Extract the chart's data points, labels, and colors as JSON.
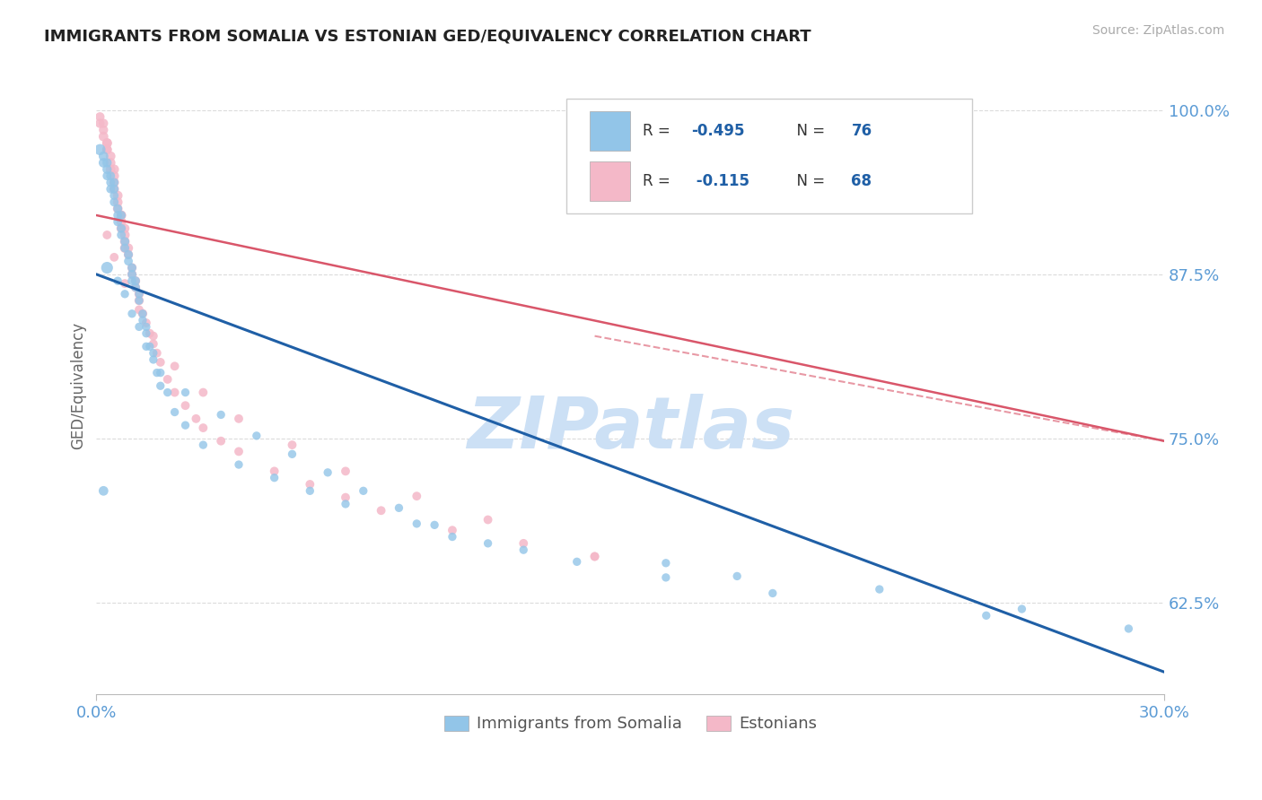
{
  "title": "IMMIGRANTS FROM SOMALIA VS ESTONIAN GED/EQUIVALENCY CORRELATION CHART",
  "source_text": "Source: ZipAtlas.com",
  "ylabel": "GED/Equivalency",
  "xlim": [
    0.0,
    0.3
  ],
  "ylim": [
    0.555,
    1.025
  ],
  "yticks": [
    0.625,
    0.75,
    0.875,
    1.0
  ],
  "ytick_labels": [
    "62.5%",
    "75.0%",
    "87.5%",
    "100.0%"
  ],
  "xticks": [
    0.0,
    0.3
  ],
  "xtick_labels": [
    "0.0%",
    "30.0%"
  ],
  "title_color": "#222222",
  "title_fontsize": 13,
  "tick_label_color": "#5b9bd5",
  "watermark_text": "ZIPatlas",
  "watermark_color": "#cce0f5",
  "blue_color": "#92c5e8",
  "pink_color": "#f4b8c8",
  "blue_line_color": "#1f5fa6",
  "pink_line_color": "#d9566a",
  "legend_label1": "Immigrants from Somalia",
  "legend_label2": "Estonians",
  "blue_line_x": [
    0.0,
    0.3
  ],
  "blue_line_y": [
    0.875,
    0.572
  ],
  "pink_line_x": [
    0.0,
    0.3
  ],
  "pink_line_y": [
    0.92,
    0.748
  ],
  "grid_color": "#cccccc",
  "background_color": "#ffffff",
  "blue_scatter_x": [
    0.001,
    0.002,
    0.002,
    0.003,
    0.003,
    0.003,
    0.004,
    0.004,
    0.004,
    0.005,
    0.005,
    0.005,
    0.005,
    0.006,
    0.006,
    0.006,
    0.007,
    0.007,
    0.007,
    0.008,
    0.008,
    0.009,
    0.009,
    0.01,
    0.01,
    0.01,
    0.011,
    0.011,
    0.012,
    0.012,
    0.013,
    0.013,
    0.014,
    0.014,
    0.015,
    0.016,
    0.016,
    0.017,
    0.018,
    0.02,
    0.022,
    0.025,
    0.03,
    0.04,
    0.05,
    0.06,
    0.07,
    0.09,
    0.1,
    0.12,
    0.16,
    0.18,
    0.22,
    0.26,
    0.006,
    0.008,
    0.01,
    0.012,
    0.014,
    0.018,
    0.025,
    0.035,
    0.045,
    0.055,
    0.065,
    0.075,
    0.085,
    0.095,
    0.11,
    0.135,
    0.16,
    0.19,
    0.25,
    0.29,
    0.002,
    0.003
  ],
  "blue_scatter_y": [
    0.97,
    0.96,
    0.965,
    0.955,
    0.96,
    0.95,
    0.945,
    0.95,
    0.94,
    0.93,
    0.935,
    0.94,
    0.945,
    0.92,
    0.925,
    0.915,
    0.91,
    0.905,
    0.92,
    0.895,
    0.9,
    0.885,
    0.89,
    0.875,
    0.88,
    0.87,
    0.865,
    0.87,
    0.855,
    0.86,
    0.84,
    0.845,
    0.83,
    0.835,
    0.82,
    0.81,
    0.815,
    0.8,
    0.79,
    0.785,
    0.77,
    0.76,
    0.745,
    0.73,
    0.72,
    0.71,
    0.7,
    0.685,
    0.675,
    0.665,
    0.655,
    0.645,
    0.635,
    0.62,
    0.87,
    0.86,
    0.845,
    0.835,
    0.82,
    0.8,
    0.785,
    0.768,
    0.752,
    0.738,
    0.724,
    0.71,
    0.697,
    0.684,
    0.67,
    0.656,
    0.644,
    0.632,
    0.615,
    0.605,
    0.71,
    0.88
  ],
  "blue_scatter_sizes": [
    80,
    60,
    60,
    55,
    55,
    50,
    50,
    50,
    50,
    50,
    50,
    50,
    50,
    50,
    50,
    50,
    50,
    50,
    50,
    50,
    50,
    50,
    50,
    50,
    50,
    50,
    50,
    50,
    45,
    45,
    45,
    45,
    45,
    45,
    45,
    45,
    45,
    45,
    45,
    45,
    45,
    45,
    45,
    45,
    45,
    45,
    45,
    45,
    45,
    45,
    45,
    45,
    45,
    45,
    45,
    45,
    45,
    45,
    45,
    45,
    45,
    45,
    45,
    45,
    45,
    45,
    45,
    45,
    45,
    45,
    45,
    45,
    45,
    45,
    60,
    90
  ],
  "pink_scatter_x": [
    0.001,
    0.001,
    0.002,
    0.002,
    0.002,
    0.003,
    0.003,
    0.003,
    0.003,
    0.004,
    0.004,
    0.004,
    0.005,
    0.005,
    0.005,
    0.005,
    0.006,
    0.006,
    0.006,
    0.007,
    0.007,
    0.007,
    0.007,
    0.008,
    0.008,
    0.008,
    0.008,
    0.009,
    0.009,
    0.01,
    0.01,
    0.011,
    0.011,
    0.012,
    0.012,
    0.013,
    0.014,
    0.015,
    0.016,
    0.017,
    0.018,
    0.02,
    0.022,
    0.025,
    0.028,
    0.03,
    0.035,
    0.04,
    0.05,
    0.06,
    0.07,
    0.08,
    0.1,
    0.12,
    0.14,
    0.003,
    0.005,
    0.008,
    0.012,
    0.016,
    0.022,
    0.03,
    0.04,
    0.055,
    0.07,
    0.09,
    0.11,
    0.14
  ],
  "pink_scatter_y": [
    0.995,
    0.99,
    0.985,
    0.99,
    0.98,
    0.975,
    0.97,
    0.975,
    0.97,
    0.965,
    0.96,
    0.955,
    0.95,
    0.955,
    0.945,
    0.94,
    0.935,
    0.93,
    0.925,
    0.92,
    0.915,
    0.91,
    0.92,
    0.905,
    0.9,
    0.895,
    0.91,
    0.895,
    0.89,
    0.88,
    0.875,
    0.87,
    0.865,
    0.86,
    0.855,
    0.845,
    0.838,
    0.83,
    0.822,
    0.815,
    0.808,
    0.795,
    0.785,
    0.775,
    0.765,
    0.758,
    0.748,
    0.74,
    0.725,
    0.715,
    0.705,
    0.695,
    0.68,
    0.67,
    0.66,
    0.905,
    0.888,
    0.868,
    0.848,
    0.828,
    0.805,
    0.785,
    0.765,
    0.745,
    0.725,
    0.706,
    0.688,
    0.66
  ],
  "pink_scatter_sizes": [
    55,
    55,
    55,
    55,
    60,
    60,
    60,
    60,
    55,
    60,
    60,
    60,
    60,
    60,
    60,
    60,
    60,
    60,
    60,
    60,
    60,
    60,
    55,
    60,
    60,
    60,
    55,
    55,
    55,
    55,
    55,
    55,
    55,
    55,
    55,
    55,
    50,
    50,
    50,
    50,
    50,
    50,
    50,
    50,
    50,
    50,
    50,
    50,
    50,
    50,
    50,
    50,
    50,
    50,
    50,
    50,
    50,
    50,
    50,
    50,
    50,
    50,
    50,
    50,
    50,
    50,
    50,
    50
  ]
}
